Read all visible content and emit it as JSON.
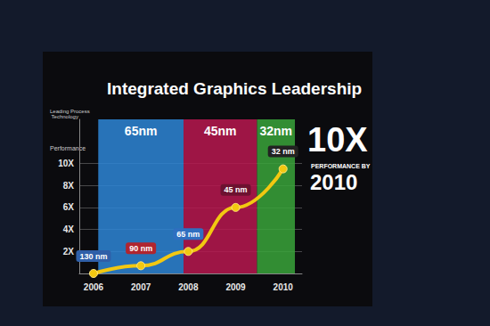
{
  "chart_data": {
    "type": "line",
    "title": "Integrated Graphics Leadership",
    "ylabel": "Performance",
    "band_title": "Leading Process Technology",
    "bands": [
      {
        "label": "65nm",
        "from": 2006.1,
        "to": 2007.9,
        "color": "#2e86d6"
      },
      {
        "label": "45nm",
        "from": 2007.9,
        "to": 2009.45,
        "color": "#b8174f"
      },
      {
        "label": "32nm",
        "from": 2009.45,
        "to": 2010.25,
        "color": "#3aa53a"
      }
    ],
    "x": [
      2006,
      2007,
      2008,
      2009,
      2010
    ],
    "values": [
      0,
      0.7,
      2.0,
      6.0,
      9.5
    ],
    "point_labels": [
      "130 nm",
      "90 nm",
      "65 nm",
      "45 nm",
      "32 nm"
    ],
    "color": "#f2c811",
    "marker": "circle",
    "xlim": [
      2005.7,
      2010.4
    ],
    "xticks": [
      2006,
      2007,
      2008,
      2009,
      2010
    ],
    "ylim": [
      0,
      14
    ],
    "yticks": [
      {
        "value": 2,
        "label": "2X"
      },
      {
        "value": 4,
        "label": "4X"
      },
      {
        "value": 6,
        "label": "6X"
      },
      {
        "value": 8,
        "label": "8X"
      },
      {
        "value": 10,
        "label": "10X"
      }
    ],
    "grid": true,
    "annotations": [
      "10X",
      "PERFORMANCE BY",
      "2010"
    ]
  }
}
